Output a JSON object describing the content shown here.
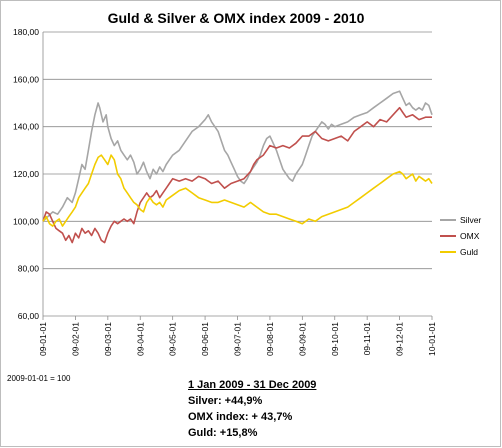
{
  "chart_data": {
    "type": "line",
    "title": "Guld & Silver & OMX index 2009 - 2010",
    "ylim": [
      60,
      180
    ],
    "y_ticks": [
      "60,00",
      "80,00",
      "100,00",
      "120,00",
      "140,00",
      "160,00",
      "180,00"
    ],
    "x_ticks": [
      "09-01-01",
      "09-02-01",
      "09-03-01",
      "09-04-01",
      "09-05-01",
      "09-06-01",
      "09-07-01",
      "09-08-01",
      "09-09-01",
      "09-10-01",
      "09-11-01",
      "09-12-01",
      "10-01-01"
    ],
    "grid": "horizontal",
    "legend_position": "right",
    "x_unit": "month index from 2009-01-01",
    "series": [
      {
        "name": "Silver",
        "color": "#a6a6a6",
        "points": [
          [
            0,
            100
          ],
          [
            0.15,
            102
          ],
          [
            0.3,
            104
          ],
          [
            0.45,
            103
          ],
          [
            0.6,
            106
          ],
          [
            0.75,
            110
          ],
          [
            0.9,
            108
          ],
          [
            1.0,
            112
          ],
          [
            1.1,
            118
          ],
          [
            1.2,
            124
          ],
          [
            1.3,
            122
          ],
          [
            1.4,
            130
          ],
          [
            1.5,
            138
          ],
          [
            1.6,
            145
          ],
          [
            1.7,
            150
          ],
          [
            1.75,
            148
          ],
          [
            1.85,
            142
          ],
          [
            1.95,
            145
          ],
          [
            2.0,
            140
          ],
          [
            2.1,
            135
          ],
          [
            2.2,
            132
          ],
          [
            2.3,
            134
          ],
          [
            2.4,
            130
          ],
          [
            2.5,
            128
          ],
          [
            2.6,
            126
          ],
          [
            2.7,
            128
          ],
          [
            2.8,
            125
          ],
          [
            2.9,
            120
          ],
          [
            3.0,
            122
          ],
          [
            3.1,
            125
          ],
          [
            3.2,
            121
          ],
          [
            3.3,
            118
          ],
          [
            3.4,
            122
          ],
          [
            3.5,
            120
          ],
          [
            3.6,
            123
          ],
          [
            3.7,
            121
          ],
          [
            3.8,
            124
          ],
          [
            3.9,
            126
          ],
          [
            4.0,
            128
          ],
          [
            4.2,
            130
          ],
          [
            4.4,
            134
          ],
          [
            4.6,
            138
          ],
          [
            4.8,
            140
          ],
          [
            5.0,
            143
          ],
          [
            5.1,
            145
          ],
          [
            5.2,
            142
          ],
          [
            5.4,
            138
          ],
          [
            5.5,
            134
          ],
          [
            5.6,
            130
          ],
          [
            5.7,
            128
          ],
          [
            5.8,
            125
          ],
          [
            5.9,
            122
          ],
          [
            6.0,
            119
          ],
          [
            6.1,
            117
          ],
          [
            6.2,
            116
          ],
          [
            6.3,
            118
          ],
          [
            6.4,
            121
          ],
          [
            6.5,
            123
          ],
          [
            6.6,
            125
          ],
          [
            6.7,
            128
          ],
          [
            6.8,
            132
          ],
          [
            6.9,
            135
          ],
          [
            7.0,
            136
          ],
          [
            7.1,
            133
          ],
          [
            7.2,
            130
          ],
          [
            7.3,
            126
          ],
          [
            7.4,
            122
          ],
          [
            7.5,
            120
          ],
          [
            7.6,
            118
          ],
          [
            7.7,
            117
          ],
          [
            7.8,
            120
          ],
          [
            7.9,
            122
          ],
          [
            8.0,
            124
          ],
          [
            8.1,
            128
          ],
          [
            8.2,
            132
          ],
          [
            8.3,
            136
          ],
          [
            8.4,
            138
          ],
          [
            8.5,
            140
          ],
          [
            8.6,
            142
          ],
          [
            8.7,
            141
          ],
          [
            8.8,
            139
          ],
          [
            8.9,
            141
          ],
          [
            9.0,
            140
          ],
          [
            9.2,
            141
          ],
          [
            9.4,
            142
          ],
          [
            9.6,
            144
          ],
          [
            9.8,
            145
          ],
          [
            10.0,
            146
          ],
          [
            10.2,
            148
          ],
          [
            10.4,
            150
          ],
          [
            10.6,
            152
          ],
          [
            10.8,
            154
          ],
          [
            11.0,
            155
          ],
          [
            11.1,
            152
          ],
          [
            11.2,
            149
          ],
          [
            11.3,
            150
          ],
          [
            11.4,
            148
          ],
          [
            11.5,
            147
          ],
          [
            11.6,
            148
          ],
          [
            11.7,
            147
          ],
          [
            11.8,
            150
          ],
          [
            11.9,
            149
          ],
          [
            12.0,
            145
          ]
        ]
      },
      {
        "name": "OMX",
        "color": "#c0504d",
        "points": [
          [
            0,
            100
          ],
          [
            0.1,
            104
          ],
          [
            0.2,
            103
          ],
          [
            0.3,
            100
          ],
          [
            0.4,
            97
          ],
          [
            0.5,
            96
          ],
          [
            0.6,
            95
          ],
          [
            0.7,
            92
          ],
          [
            0.8,
            94
          ],
          [
            0.9,
            91
          ],
          [
            1.0,
            95
          ],
          [
            1.1,
            93
          ],
          [
            1.2,
            97
          ],
          [
            1.3,
            95
          ],
          [
            1.4,
            96
          ],
          [
            1.5,
            94
          ],
          [
            1.6,
            97
          ],
          [
            1.7,
            95
          ],
          [
            1.8,
            92
          ],
          [
            1.9,
            91
          ],
          [
            2.0,
            95
          ],
          [
            2.1,
            98
          ],
          [
            2.2,
            100
          ],
          [
            2.3,
            99
          ],
          [
            2.4,
            100
          ],
          [
            2.5,
            101
          ],
          [
            2.6,
            100
          ],
          [
            2.7,
            101
          ],
          [
            2.8,
            99
          ],
          [
            2.9,
            104
          ],
          [
            3.0,
            108
          ],
          [
            3.1,
            110
          ],
          [
            3.2,
            112
          ],
          [
            3.3,
            110
          ],
          [
            3.4,
            111
          ],
          [
            3.5,
            113
          ],
          [
            3.6,
            110
          ],
          [
            3.7,
            112
          ],
          [
            3.8,
            114
          ],
          [
            3.9,
            116
          ],
          [
            4.0,
            118
          ],
          [
            4.2,
            117
          ],
          [
            4.4,
            118
          ],
          [
            4.6,
            117
          ],
          [
            4.8,
            119
          ],
          [
            5.0,
            118
          ],
          [
            5.1,
            117
          ],
          [
            5.2,
            116
          ],
          [
            5.4,
            117
          ],
          [
            5.6,
            114
          ],
          [
            5.8,
            116
          ],
          [
            6.0,
            117
          ],
          [
            6.2,
            118
          ],
          [
            6.4,
            121
          ],
          [
            6.5,
            124
          ],
          [
            6.6,
            126
          ],
          [
            6.7,
            127
          ],
          [
            6.8,
            128
          ],
          [
            6.9,
            130
          ],
          [
            7.0,
            132
          ],
          [
            7.2,
            131
          ],
          [
            7.4,
            132
          ],
          [
            7.6,
            131
          ],
          [
            7.8,
            133
          ],
          [
            8.0,
            136
          ],
          [
            8.2,
            136
          ],
          [
            8.4,
            138
          ],
          [
            8.6,
            135
          ],
          [
            8.8,
            134
          ],
          [
            9.0,
            135
          ],
          [
            9.2,
            136
          ],
          [
            9.4,
            134
          ],
          [
            9.6,
            138
          ],
          [
            9.8,
            140
          ],
          [
            10.0,
            142
          ],
          [
            10.2,
            140
          ],
          [
            10.4,
            143
          ],
          [
            10.6,
            142
          ],
          [
            10.8,
            145
          ],
          [
            11.0,
            148
          ],
          [
            11.1,
            146
          ],
          [
            11.2,
            144
          ],
          [
            11.4,
            145
          ],
          [
            11.6,
            143
          ],
          [
            11.8,
            144
          ],
          [
            12.0,
            144
          ]
        ]
      },
      {
        "name": "Guld",
        "color": "#f2cc00",
        "points": [
          [
            0,
            100
          ],
          [
            0.1,
            102
          ],
          [
            0.2,
            99
          ],
          [
            0.3,
            98
          ],
          [
            0.4,
            100
          ],
          [
            0.5,
            101
          ],
          [
            0.6,
            98
          ],
          [
            0.7,
            100
          ],
          [
            0.8,
            102
          ],
          [
            0.9,
            104
          ],
          [
            1.0,
            106
          ],
          [
            1.1,
            110
          ],
          [
            1.2,
            112
          ],
          [
            1.3,
            114
          ],
          [
            1.4,
            116
          ],
          [
            1.5,
            120
          ],
          [
            1.6,
            124
          ],
          [
            1.7,
            127
          ],
          [
            1.8,
            128
          ],
          [
            1.9,
            126
          ],
          [
            2.0,
            124
          ],
          [
            2.1,
            128
          ],
          [
            2.2,
            126
          ],
          [
            2.3,
            120
          ],
          [
            2.4,
            118
          ],
          [
            2.5,
            114
          ],
          [
            2.6,
            112
          ],
          [
            2.7,
            110
          ],
          [
            2.8,
            108
          ],
          [
            2.9,
            107
          ],
          [
            3.0,
            105
          ],
          [
            3.1,
            104
          ],
          [
            3.2,
            108
          ],
          [
            3.3,
            110
          ],
          [
            3.4,
            108
          ],
          [
            3.5,
            107
          ],
          [
            3.6,
            108
          ],
          [
            3.7,
            106
          ],
          [
            3.8,
            109
          ],
          [
            3.9,
            110
          ],
          [
            4.0,
            111
          ],
          [
            4.2,
            113
          ],
          [
            4.4,
            114
          ],
          [
            4.6,
            112
          ],
          [
            4.8,
            110
          ],
          [
            5.0,
            109
          ],
          [
            5.2,
            108
          ],
          [
            5.4,
            108
          ],
          [
            5.6,
            109
          ],
          [
            5.8,
            108
          ],
          [
            6.0,
            107
          ],
          [
            6.2,
            106
          ],
          [
            6.4,
            108
          ],
          [
            6.6,
            106
          ],
          [
            6.8,
            104
          ],
          [
            7.0,
            103
          ],
          [
            7.2,
            103
          ],
          [
            7.4,
            102
          ],
          [
            7.6,
            101
          ],
          [
            7.8,
            100
          ],
          [
            8.0,
            99
          ],
          [
            8.2,
            101
          ],
          [
            8.4,
            100
          ],
          [
            8.6,
            102
          ],
          [
            8.8,
            103
          ],
          [
            9.0,
            104
          ],
          [
            9.2,
            105
          ],
          [
            9.4,
            106
          ],
          [
            9.6,
            108
          ],
          [
            9.8,
            110
          ],
          [
            10.0,
            112
          ],
          [
            10.2,
            114
          ],
          [
            10.4,
            116
          ],
          [
            10.6,
            118
          ],
          [
            10.8,
            120
          ],
          [
            11.0,
            121
          ],
          [
            11.1,
            120
          ],
          [
            11.2,
            118
          ],
          [
            11.3,
            119
          ],
          [
            11.4,
            120
          ],
          [
            11.5,
            117
          ],
          [
            11.6,
            119
          ],
          [
            11.7,
            118
          ],
          [
            11.8,
            117
          ],
          [
            11.9,
            118
          ],
          [
            12.0,
            116
          ]
        ]
      }
    ]
  },
  "base_note": "2009-01-01 = 100",
  "summary": {
    "heading": "1 Jan 2009 - 31 Dec 2009",
    "lines": [
      "Silver: +44,9%",
      "OMX index: + 43,7%",
      "Guld: +15,8%"
    ]
  }
}
